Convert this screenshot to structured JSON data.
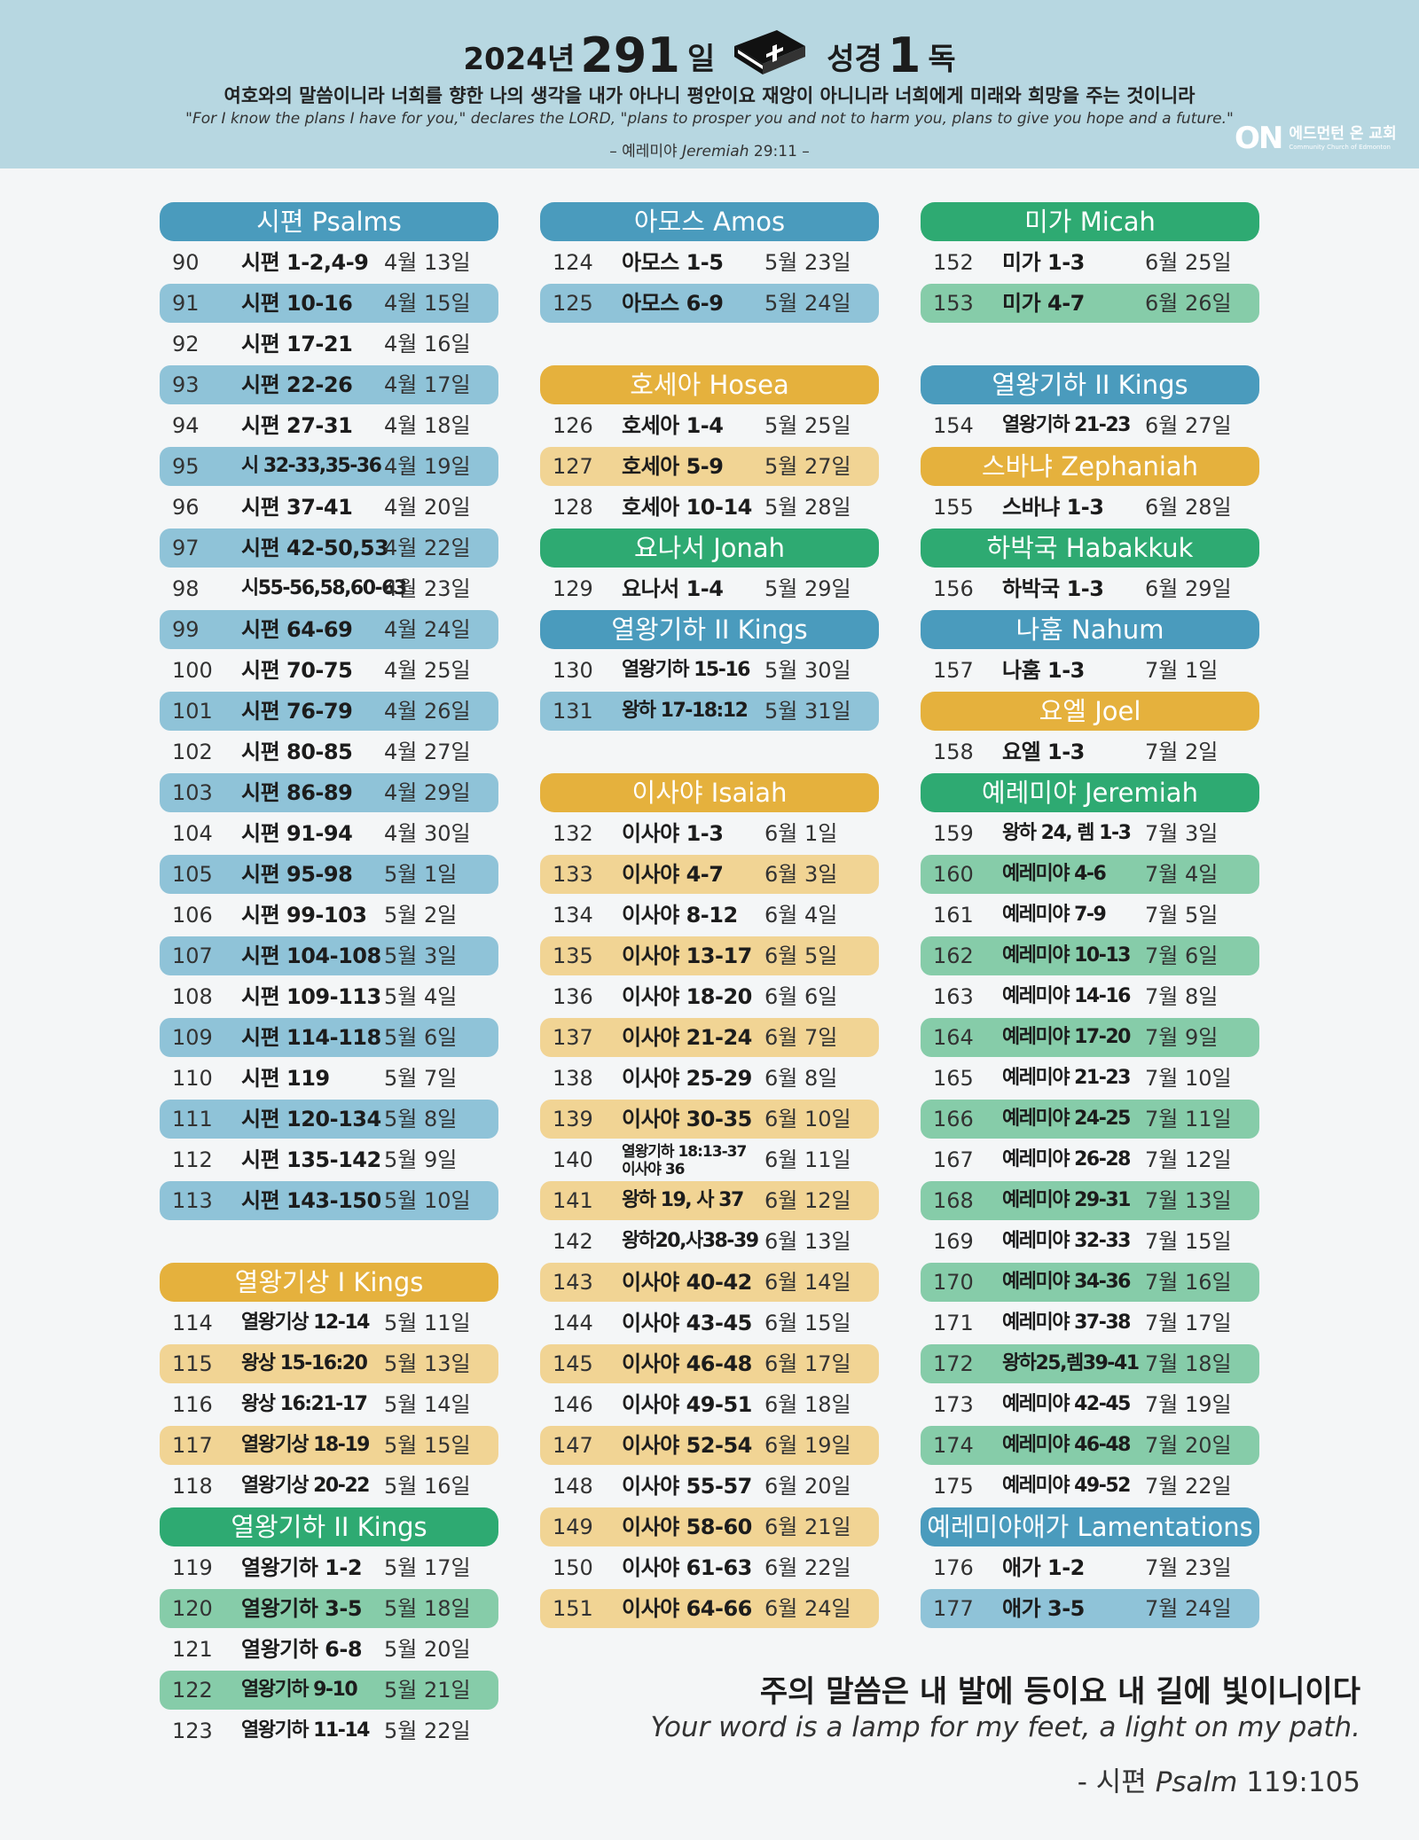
{
  "header": {
    "title_year": "2024년",
    "title_days_num": "291",
    "title_days_unit": "일",
    "title_bible": "성경",
    "title_count_num": "1",
    "title_count_unit": "독",
    "verse_ko": "여호와의 말씀이니라 너희를 향한 나의 생각을 내가 아나니 평안이요 재앙이 아니니라 너희에게 미래와 희망을 주는 것이니라",
    "verse_en": "\"For I know the plans I have for you,\" declares the LORD, \"plans to prosper you and not to harm you, plans to give you hope and a future.\"",
    "ref_prefix": "– 예레미야",
    "ref_book_en": "Jeremiah",
    "ref_chapter": "29:11 –",
    "logo_mark": "ON",
    "logo_ko": "에드먼턴 온 교회",
    "logo_en": "Community Church of Edmonton"
  },
  "colors": {
    "blue": "#4a9bbd",
    "blue_light": "#8fc3d8",
    "green": "#2eaa72",
    "green_light": "#86cca9",
    "yellow": "#e5b13d",
    "yellow_light": "#f1d494"
  },
  "columns": [
    [
      {
        "type": "header",
        "title": "시편 Psalms",
        "color": "#4a9bbd"
      },
      {
        "n": "90",
        "p": "시편 1-2,4-9",
        "d": "4월 13일"
      },
      {
        "n": "91",
        "p": "시편 10-16",
        "d": "4월 15일",
        "bg": "#8fc3d8"
      },
      {
        "n": "92",
        "p": "시편 17-21",
        "d": "4월 16일"
      },
      {
        "n": "93",
        "p": "시편 22-26",
        "d": "4월 17일",
        "bg": "#8fc3d8"
      },
      {
        "n": "94",
        "p": "시편 27-31",
        "d": "4월 18일"
      },
      {
        "n": "95",
        "p": "시 32-33,35-36",
        "d": "4월 19일",
        "bg": "#8fc3d8",
        "cond": true
      },
      {
        "n": "96",
        "p": "시편 37-41",
        "d": "4월 20일"
      },
      {
        "n": "97",
        "p": "시편 42-50,53",
        "d": "4월 22일",
        "bg": "#8fc3d8"
      },
      {
        "n": "98",
        "p": "시55-56,58,60-63",
        "d": "4월 23일",
        "cond": true
      },
      {
        "n": "99",
        "p": "시편 64-69",
        "d": "4월 24일",
        "bg": "#8fc3d8"
      },
      {
        "n": "100",
        "p": "시편 70-75",
        "d": "4월 25일"
      },
      {
        "n": "101",
        "p": "시편 76-79",
        "d": "4월 26일",
        "bg": "#8fc3d8"
      },
      {
        "n": "102",
        "p": "시편 80-85",
        "d": "4월 27일"
      },
      {
        "n": "103",
        "p": "시편 86-89",
        "d": "4월 29일",
        "bg": "#8fc3d8"
      },
      {
        "n": "104",
        "p": "시편 91-94",
        "d": "4월 30일"
      },
      {
        "n": "105",
        "p": "시편 95-98",
        "d": "5월 1일",
        "bg": "#8fc3d8"
      },
      {
        "n": "106",
        "p": "시편 99-103",
        "d": "5월 2일"
      },
      {
        "n": "107",
        "p": "시편 104-108",
        "d": "5월 3일",
        "bg": "#8fc3d8"
      },
      {
        "n": "108",
        "p": "시편 109-113",
        "d": "5월 4일"
      },
      {
        "n": "109",
        "p": "시편 114-118",
        "d": "5월 6일",
        "bg": "#8fc3d8"
      },
      {
        "n": "110",
        "p": "시편 119",
        "d": "5월 7일"
      },
      {
        "n": "111",
        "p": "시편 120-134",
        "d": "5월 8일",
        "bg": "#8fc3d8"
      },
      {
        "n": "112",
        "p": "시편 135-142",
        "d": "5월 9일"
      },
      {
        "n": "113",
        "p": "시편 143-150",
        "d": "5월 10일",
        "bg": "#8fc3d8"
      },
      {
        "type": "spacer"
      },
      {
        "type": "header",
        "title": "열왕기상 I Kings",
        "color": "#e5b13d"
      },
      {
        "n": "114",
        "p": "열왕기상 12-14",
        "d": "5월 11일",
        "cond": true
      },
      {
        "n": "115",
        "p": "왕상 15-16:20",
        "d": "5월 13일",
        "bg": "#f1d494",
        "cond": true
      },
      {
        "n": "116",
        "p": "왕상 16:21-17",
        "d": "5월 14일",
        "cond": true
      },
      {
        "n": "117",
        "p": "열왕기상 18-19",
        "d": "5월 15일",
        "bg": "#f1d494",
        "cond": true
      },
      {
        "n": "118",
        "p": "열왕기상 20-22",
        "d": "5월 16일",
        "cond": true
      },
      {
        "type": "header",
        "title": "열왕기하 II Kings",
        "color": "#2eaa72"
      },
      {
        "n": "119",
        "p": "열왕기하 1-2",
        "d": "5월 17일"
      },
      {
        "n": "120",
        "p": "열왕기하 3-5",
        "d": "5월 18일",
        "bg": "#86cca9"
      },
      {
        "n": "121",
        "p": "열왕기하 6-8",
        "d": "5월 20일"
      },
      {
        "n": "122",
        "p": "열왕기하 9-10",
        "d": "5월 21일",
        "bg": "#86cca9",
        "cond": true
      },
      {
        "n": "123",
        "p": "열왕기하 11-14",
        "d": "5월 22일",
        "cond": true
      }
    ],
    [
      {
        "type": "header",
        "title": "아모스 Amos",
        "color": "#4a9bbd"
      },
      {
        "n": "124",
        "p": "아모스 1-5",
        "d": "5월 23일"
      },
      {
        "n": "125",
        "p": "아모스 6-9",
        "d": "5월 24일",
        "bg": "#8fc3d8"
      },
      {
        "type": "spacer"
      },
      {
        "type": "header",
        "title": "호세아 Hosea",
        "color": "#e5b13d"
      },
      {
        "n": "126",
        "p": "호세아 1-4",
        "d": "5월 25일"
      },
      {
        "n": "127",
        "p": "호세아 5-9",
        "d": "5월 27일",
        "bg": "#f1d494"
      },
      {
        "n": "128",
        "p": "호세아 10-14",
        "d": "5월 28일"
      },
      {
        "type": "header",
        "title": "요나서 Jonah",
        "color": "#2eaa72"
      },
      {
        "n": "129",
        "p": "요나서 1-4",
        "d": "5월 29일"
      },
      {
        "type": "header",
        "title": "열왕기하 II Kings",
        "color": "#4a9bbd"
      },
      {
        "n": "130",
        "p": "열왕기하 15-16",
        "d": "5월 30일",
        "cond": true
      },
      {
        "n": "131",
        "p": "왕하 17-18:12",
        "d": "5월 31일",
        "bg": "#8fc3d8",
        "cond": true
      },
      {
        "type": "spacer"
      },
      {
        "type": "header",
        "title": "이사야 Isaiah",
        "color": "#e5b13d"
      },
      {
        "n": "132",
        "p": "이사야 1-3",
        "d": "6월 1일"
      },
      {
        "n": "133",
        "p": "이사야 4-7",
        "d": "6월 3일",
        "bg": "#f1d494"
      },
      {
        "n": "134",
        "p": "이사야 8-12",
        "d": "6월 4일"
      },
      {
        "n": "135",
        "p": "이사야 13-17",
        "d": "6월 5일",
        "bg": "#f1d494"
      },
      {
        "n": "136",
        "p": "이사야 18-20",
        "d": "6월 6일"
      },
      {
        "n": "137",
        "p": "이사야 21-24",
        "d": "6월 7일",
        "bg": "#f1d494"
      },
      {
        "n": "138",
        "p": "이사야 25-29",
        "d": "6월 8일"
      },
      {
        "n": "139",
        "p": "이사야 30-35",
        "d": "6월 10일",
        "bg": "#f1d494"
      },
      {
        "n": "140",
        "p": "열왕기하 18:13-37",
        "p2": "이사야 36",
        "d": "6월 11일"
      },
      {
        "n": "141",
        "p": "왕하 19, 사 37",
        "d": "6월 12일",
        "bg": "#f1d494",
        "cond": true
      },
      {
        "n": "142",
        "p": "왕하20,사38-39",
        "d": "6월 13일",
        "cond": true
      },
      {
        "n": "143",
        "p": "이사야 40-42",
        "d": "6월 14일",
        "bg": "#f1d494"
      },
      {
        "n": "144",
        "p": "이사야 43-45",
        "d": "6월 15일"
      },
      {
        "n": "145",
        "p": "이사야 46-48",
        "d": "6월 17일",
        "bg": "#f1d494"
      },
      {
        "n": "146",
        "p": "이사야 49-51",
        "d": "6월 18일"
      },
      {
        "n": "147",
        "p": "이사야 52-54",
        "d": "6월 19일",
        "bg": "#f1d494"
      },
      {
        "n": "148",
        "p": "이사야 55-57",
        "d": "6월 20일"
      },
      {
        "n": "149",
        "p": "이사야 58-60",
        "d": "6월 21일",
        "bg": "#f1d494"
      },
      {
        "n": "150",
        "p": "이사야 61-63",
        "d": "6월 22일"
      },
      {
        "n": "151",
        "p": "이사야 64-66",
        "d": "6월 24일",
        "bg": "#f1d494"
      }
    ],
    [
      {
        "type": "header",
        "title": "미가 Micah",
        "color": "#2eaa72"
      },
      {
        "n": "152",
        "p": "미가 1-3",
        "d": "6월 25일"
      },
      {
        "n": "153",
        "p": "미가 4-7",
        "d": "6월 26일",
        "bg": "#86cca9"
      },
      {
        "type": "spacer"
      },
      {
        "type": "header",
        "title": "열왕기하 II Kings",
        "color": "#4a9bbd"
      },
      {
        "n": "154",
        "p": "열왕기하 21-23",
        "d": "6월 27일",
        "cond": true
      },
      {
        "type": "header",
        "title": "스바냐 Zephaniah",
        "color": "#e5b13d"
      },
      {
        "n": "155",
        "p": "스바냐 1-3",
        "d": "6월 28일"
      },
      {
        "type": "header",
        "title": "하박국 Habakkuk",
        "color": "#2eaa72"
      },
      {
        "n": "156",
        "p": "하박국 1-3",
        "d": "6월 29일"
      },
      {
        "type": "header",
        "title": "나훔 Nahum",
        "color": "#4a9bbd"
      },
      {
        "n": "157",
        "p": "나훔 1-3",
        "d": "7월 1일"
      },
      {
        "type": "header",
        "title": "요엘 Joel",
        "color": "#e5b13d"
      },
      {
        "n": "158",
        "p": "요엘 1-3",
        "d": "7월 2일"
      },
      {
        "type": "header",
        "title": "예레미야 Jeremiah",
        "color": "#2eaa72"
      },
      {
        "n": "159",
        "p": "왕하 24, 렘 1-3",
        "d": "7월 3일",
        "cond": true
      },
      {
        "n": "160",
        "p": "예레미야 4-6",
        "d": "7월 4일",
        "bg": "#86cca9",
        "cond": true
      },
      {
        "n": "161",
        "p": "예레미야 7-9",
        "d": "7월 5일",
        "cond": true
      },
      {
        "n": "162",
        "p": "예레미야 10-13",
        "d": "7월 6일",
        "bg": "#86cca9",
        "cond": true
      },
      {
        "n": "163",
        "p": "예레미야 14-16",
        "d": "7월 8일",
        "cond": true
      },
      {
        "n": "164",
        "p": "예레미야 17-20",
        "d": "7월 9일",
        "bg": "#86cca9",
        "cond": true
      },
      {
        "n": "165",
        "p": "예레미야 21-23",
        "d": "7월 10일",
        "cond": true
      },
      {
        "n": "166",
        "p": "예레미야 24-25",
        "d": "7월 11일",
        "bg": "#86cca9",
        "cond": true
      },
      {
        "n": "167",
        "p": "예레미야 26-28",
        "d": "7월 12일",
        "cond": true
      },
      {
        "n": "168",
        "p": "예레미야 29-31",
        "d": "7월 13일",
        "bg": "#86cca9",
        "cond": true
      },
      {
        "n": "169",
        "p": "예레미야 32-33",
        "d": "7월 15일",
        "cond": true
      },
      {
        "n": "170",
        "p": "예레미야 34-36",
        "d": "7월 16일",
        "bg": "#86cca9",
        "cond": true
      },
      {
        "n": "171",
        "p": "예레미야 37-38",
        "d": "7월 17일",
        "cond": true
      },
      {
        "n": "172",
        "p": "왕하25,렘39-41",
        "d": "7월 18일",
        "bg": "#86cca9",
        "cond": true
      },
      {
        "n": "173",
        "p": "예레미야 42-45",
        "d": "7월 19일",
        "cond": true
      },
      {
        "n": "174",
        "p": "예레미야 46-48",
        "d": "7월 20일",
        "bg": "#86cca9",
        "cond": true
      },
      {
        "n": "175",
        "p": "예레미야 49-52",
        "d": "7월 22일",
        "cond": true
      },
      {
        "type": "header",
        "title": "예레미야애가 Lamentations",
        "color": "#4a9bbd"
      },
      {
        "n": "176",
        "p": "애가 1-2",
        "d": "7월 23일"
      },
      {
        "n": "177",
        "p": "애가 3-5",
        "d": "7월 24일",
        "bg": "#8fc3d8"
      }
    ]
  ],
  "footer": {
    "verse_ko": "주의 말씀은 내 발에 등이요 내 길에 빛이니이다",
    "verse_en": "Your word is a lamp for my feet, a light on my path.",
    "ref_prefix": "- 시편",
    "ref_book_en": "Psalm",
    "ref_chapter": "119:105"
  }
}
